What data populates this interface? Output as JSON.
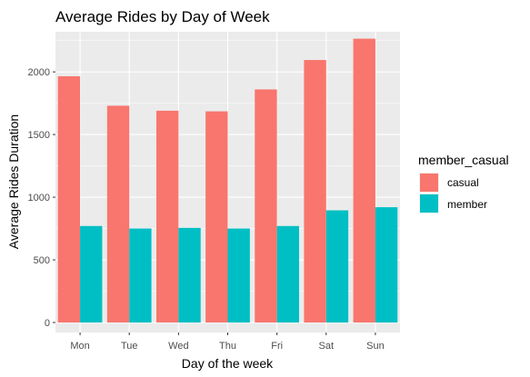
{
  "chart_data": {
    "type": "bar",
    "title": "Average Rides by Day of Week",
    "xlabel": "Day of the week",
    "ylabel": "Average Rides Duration",
    "categories": [
      "Mon",
      "Tue",
      "Wed",
      "Thu",
      "Fri",
      "Sat",
      "Sun"
    ],
    "series": [
      {
        "name": "casual",
        "color": "#F8766D",
        "values": [
          1965,
          1730,
          1690,
          1685,
          1860,
          2095,
          2265
        ]
      },
      {
        "name": "member",
        "color": "#00BFC4",
        "values": [
          770,
          750,
          755,
          750,
          770,
          895,
          920
        ]
      }
    ],
    "ylim": [
      0,
      2320
    ],
    "yticks": [
      0,
      500,
      1000,
      1500,
      2000
    ],
    "grid": true,
    "legend": {
      "title": "member_casual",
      "placement": "right"
    }
  }
}
